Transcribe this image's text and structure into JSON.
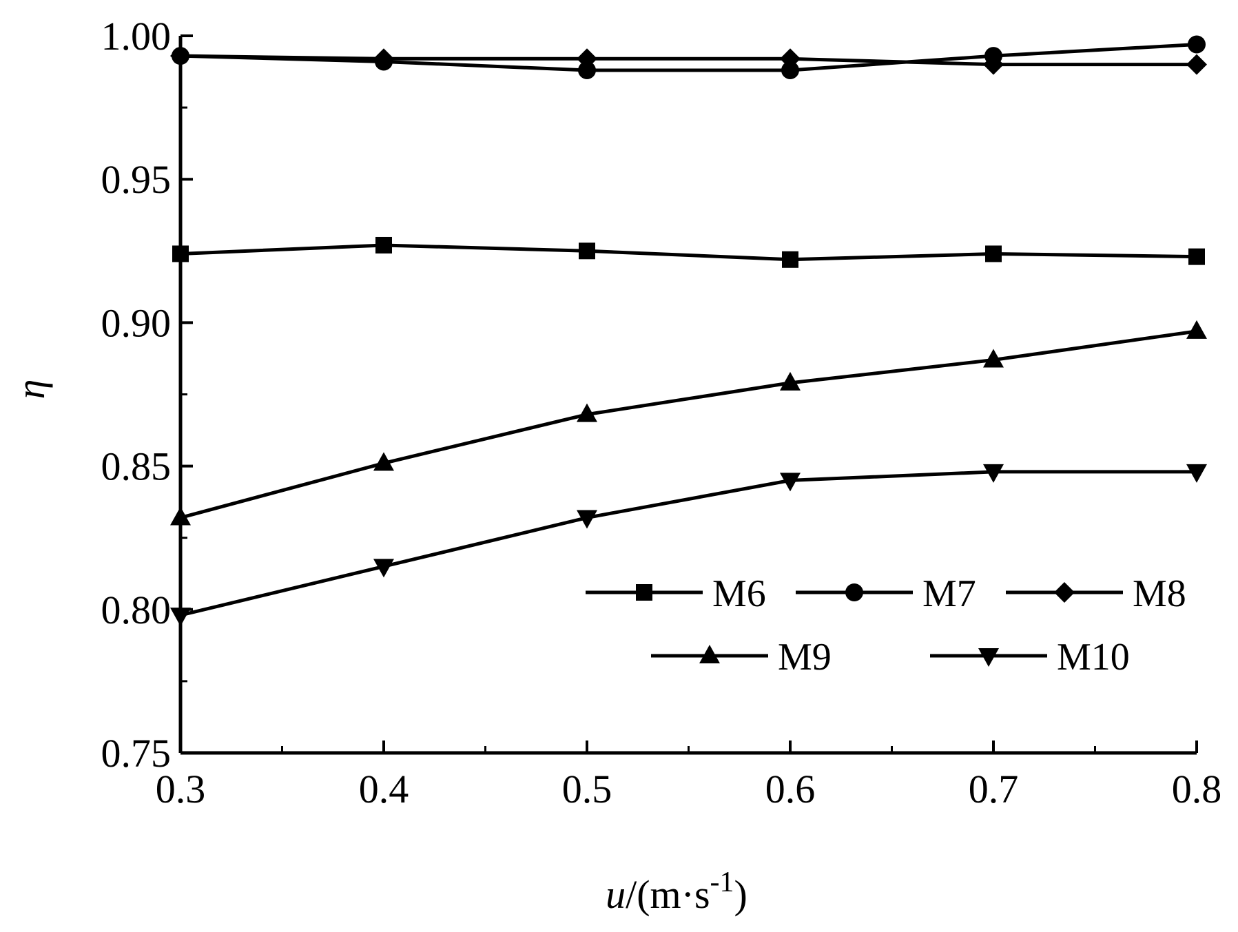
{
  "chart_data": {
    "type": "line",
    "title": "",
    "xlabel": {
      "var": "u",
      "sep": "/(",
      "unit_base": "m·s",
      "unit_exp": "-1",
      "close": ")"
    },
    "ylabel": "η",
    "xlim": [
      0.3,
      0.8
    ],
    "ylim": [
      0.75,
      1.0
    ],
    "x": [
      0.3,
      0.4,
      0.5,
      0.6,
      0.7,
      0.8
    ],
    "x_tick_labels": [
      "0.3",
      "0.4",
      "0.5",
      "0.6",
      "0.7",
      "0.8"
    ],
    "y_ticks": [
      0.75,
      0.8,
      0.85,
      0.9,
      0.95,
      1.0
    ],
    "y_tick_labels": [
      "0.75",
      "0.80",
      "0.85",
      "0.90",
      "0.95",
      "1.00"
    ],
    "grid": false,
    "legend_position": "lower-right",
    "series": [
      {
        "name": "M6",
        "marker": "square",
        "values": [
          0.924,
          0.927,
          0.925,
          0.922,
          0.924,
          0.923
        ]
      },
      {
        "name": "M7",
        "marker": "circle",
        "values": [
          0.993,
          0.991,
          0.988,
          0.988,
          0.993,
          0.997
        ]
      },
      {
        "name": "M8",
        "marker": "diamond",
        "values": [
          0.993,
          0.992,
          0.992,
          0.992,
          0.99,
          0.99
        ]
      },
      {
        "name": "M9",
        "marker": "triangle-up",
        "values": [
          0.832,
          0.851,
          0.868,
          0.879,
          0.887,
          0.897
        ]
      },
      {
        "name": "M10",
        "marker": "triangle-down",
        "values": [
          0.798,
          0.815,
          0.832,
          0.845,
          0.848,
          0.848
        ]
      }
    ]
  }
}
